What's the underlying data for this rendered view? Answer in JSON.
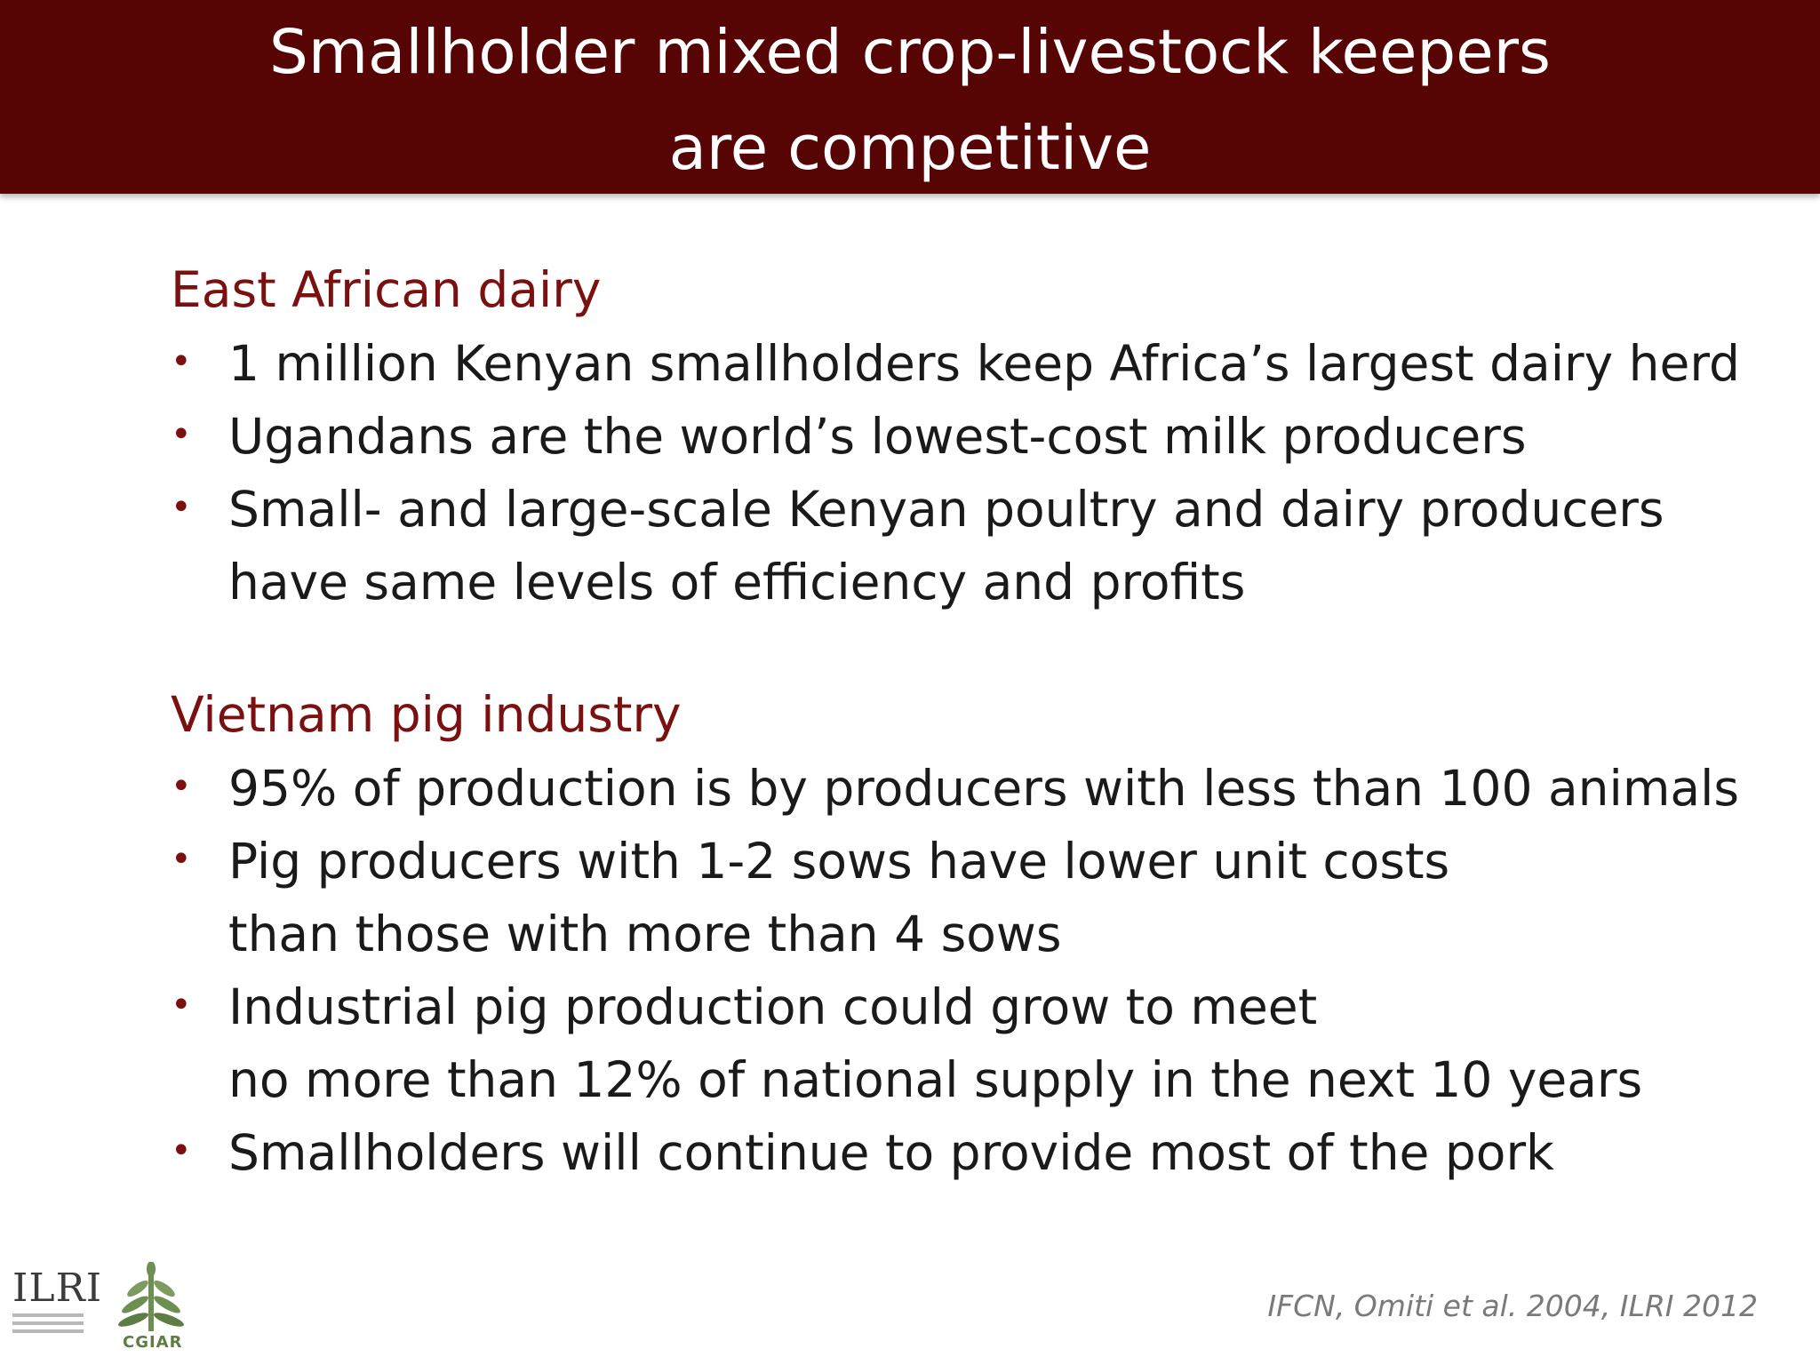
{
  "header": {
    "title_line1": "Smallholder mixed crop-livestock keepers",
    "title_line2": "are competitive",
    "background_color": "#560404"
  },
  "sections": [
    {
      "heading": "East African dairy",
      "bullets": [
        {
          "lines": [
            "1 million Kenyan smallholders keep Africa’s largest dairy herd"
          ]
        },
        {
          "lines": [
            "Ugandans are the world’s lowest-cost milk producers"
          ]
        },
        {
          "lines": [
            "Small- and large-scale Kenyan poultry and dairy producers",
            "have same levels of efficiency and profits"
          ]
        }
      ]
    },
    {
      "heading": "Vietnam pig industry",
      "bullets": [
        {
          "lines": [
            "95% of production is by producers with less than 100 animals"
          ]
        },
        {
          "lines": [
            "Pig producers with 1-2 sows have lower unit costs",
            "than those with more than 4 sows"
          ]
        },
        {
          "lines": [
            "Industrial pig production could grow to meet",
            "no more than 12% of national supply in the next 10 years"
          ]
        },
        {
          "lines": [
            "Smallholders will continue to provide most of the pork"
          ]
        }
      ]
    }
  ],
  "bullet_glyph": "•",
  "citation": "IFCN, Omiti et al. 2004, ILRI 2012",
  "logos": {
    "ilri": "ILRI",
    "cgiar": "CGIAR"
  },
  "colors": {
    "heading": "#7a1010",
    "body_text": "#1a1a1a",
    "citation": "#7a7a7a"
  }
}
